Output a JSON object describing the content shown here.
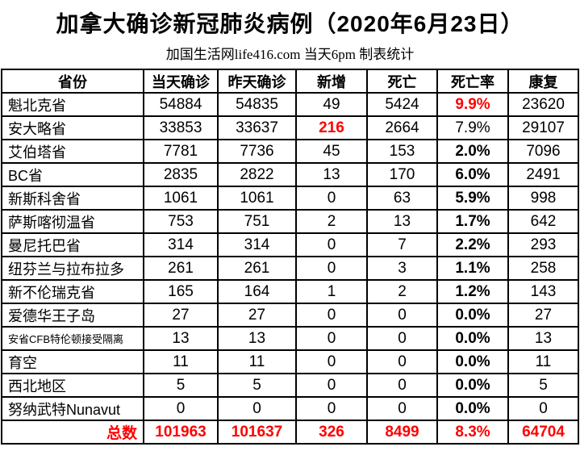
{
  "title": "加拿大确诊新冠肺炎病例（2020年6月23日）",
  "subtitle": "加国生活网life416.com 当天6pm 制表统计",
  "colors": {
    "accent_red": "#ff0000",
    "text": "#000000",
    "border": "#000000",
    "background": "#ffffff"
  },
  "table": {
    "headers": [
      "省份",
      "当天确诊",
      "昨天确诊",
      "新增",
      "死亡",
      "死亡率",
      "康复"
    ],
    "rows": [
      {
        "cells": [
          "魁北克省",
          "54884",
          "54835",
          "49",
          "5424",
          "9.9%",
          "23620"
        ],
        "styles": [
          "",
          "",
          "",
          "",
          "",
          "red-bold",
          ""
        ]
      },
      {
        "cells": [
          "安大略省",
          "33853",
          "33637",
          "216",
          "2664",
          "7.9%",
          "29107"
        ],
        "styles": [
          "",
          "",
          "",
          "red-bold",
          "",
          "",
          ""
        ]
      },
      {
        "cells": [
          "艾伯塔省",
          "7781",
          "7736",
          "45",
          "153",
          "2.0%",
          "7096"
        ],
        "styles": [
          "",
          "",
          "",
          "",
          "",
          "bold",
          ""
        ]
      },
      {
        "cells": [
          "BC省",
          "2835",
          "2822",
          "13",
          "170",
          "6.0%",
          "2491"
        ],
        "styles": [
          "",
          "",
          "",
          "",
          "",
          "bold",
          ""
        ]
      },
      {
        "cells": [
          "新斯科舍省",
          "1061",
          "1061",
          "0",
          "63",
          "5.9%",
          "998"
        ],
        "styles": [
          "",
          "",
          "",
          "",
          "",
          "bold",
          ""
        ]
      },
      {
        "cells": [
          "萨斯喀彻温省",
          "753",
          "751",
          "2",
          "13",
          "1.7%",
          "642"
        ],
        "styles": [
          "",
          "",
          "",
          "",
          "",
          "bold",
          ""
        ]
      },
      {
        "cells": [
          "曼尼托巴省",
          "314",
          "314",
          "0",
          "7",
          "2.2%",
          "293"
        ],
        "styles": [
          "",
          "",
          "",
          "",
          "",
          "bold",
          ""
        ]
      },
      {
        "cells": [
          "纽芬兰与拉布拉多",
          "261",
          "261",
          "0",
          "3",
          "1.1%",
          "258"
        ],
        "styles": [
          "",
          "",
          "",
          "",
          "",
          "bold",
          ""
        ]
      },
      {
        "cells": [
          "新不伦瑞克省",
          "165",
          "164",
          "1",
          "2",
          "1.2%",
          "143"
        ],
        "styles": [
          "",
          "",
          "",
          "",
          "",
          "bold",
          ""
        ]
      },
      {
        "cells": [
          "爱德华王子岛",
          "27",
          "27",
          "0",
          "0",
          "0.0%",
          "27"
        ],
        "styles": [
          "",
          "",
          "",
          "",
          "",
          "bold",
          ""
        ]
      },
      {
        "cells": [
          "安省CFB特伦顿接受隔离",
          "13",
          "13",
          "0",
          "0",
          "0.0%",
          "13"
        ],
        "styles": [
          "small",
          "",
          "",
          "",
          "",
          "bold",
          ""
        ]
      },
      {
        "cells": [
          "育空",
          "11",
          "11",
          "0",
          "0",
          "0.0%",
          "11"
        ],
        "styles": [
          "",
          "",
          "",
          "",
          "",
          "bold",
          ""
        ]
      },
      {
        "cells": [
          "西北地区",
          "5",
          "5",
          "0",
          "0",
          "0.0%",
          "5"
        ],
        "styles": [
          "",
          "",
          "",
          "",
          "",
          "bold",
          ""
        ]
      },
      {
        "cells": [
          "努纳武特Nunavut",
          "0",
          "0",
          "0",
          "0",
          "0.0%",
          "0"
        ],
        "styles": [
          "",
          "",
          "",
          "",
          "",
          "bold",
          ""
        ]
      },
      {
        "cells": [
          "总数",
          "101963",
          "101637",
          "326",
          "8499",
          "8.3%",
          "64704"
        ],
        "styles": [
          "total-label",
          "red-bold",
          "red-bold",
          "red-bold",
          "red-bold",
          "red-bold",
          "red-bold"
        ],
        "is_total": true
      }
    ]
  }
}
